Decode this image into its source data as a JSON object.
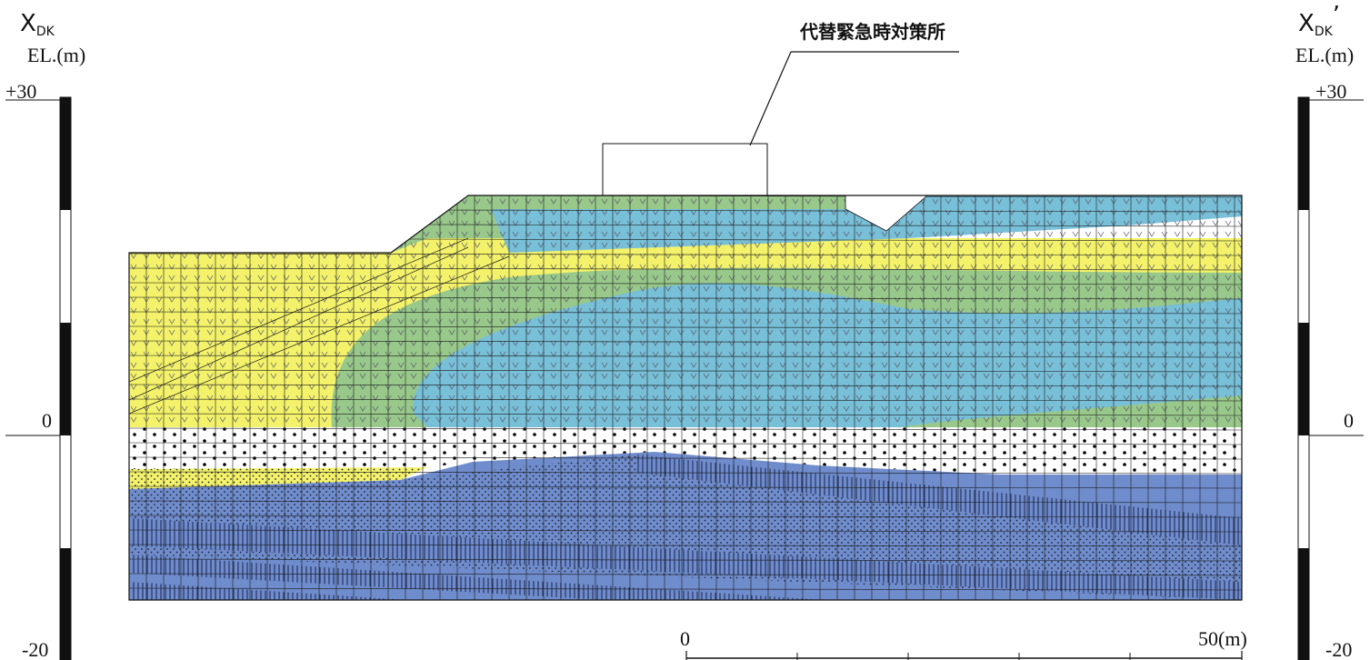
{
  "section": {
    "left_id_main": "X",
    "left_id_sub": "DK",
    "right_id_main": "X",
    "right_id_sub": "DK",
    "right_id_prime": "’"
  },
  "elevation_scale": {
    "unit_label": "EL.(m)",
    "top_label": "+30",
    "zero_label": "0",
    "bottom_label": "-20"
  },
  "building": {
    "label": "代替緊急時対策所"
  },
  "distance_scale": {
    "start_label": "0",
    "end_label": "50(m)"
  },
  "colors": {
    "yellow_layer": "#f3f26a",
    "green_layer": "#98c88a",
    "blue_layer": "#78bfd8",
    "sand_layer": "#ffffff",
    "bedrock": "#6f8ccc",
    "mesh": "#1a1a1a"
  }
}
